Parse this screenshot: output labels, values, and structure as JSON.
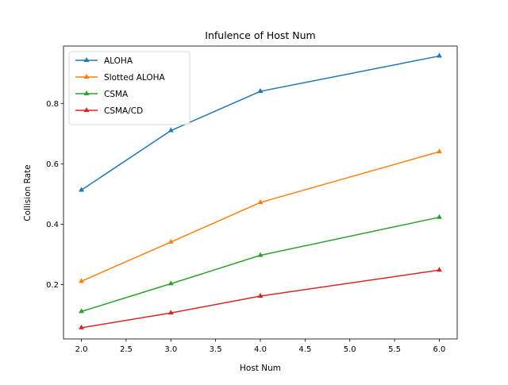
{
  "chart_data": {
    "type": "line",
    "title": "Infulence of Host Num",
    "xlabel": "Host Num",
    "ylabel": "Collision Rate",
    "x": [
      2,
      3,
      4,
      6
    ],
    "xlim": [
      1.8,
      6.2
    ],
    "ylim": [
      0.02,
      0.99
    ],
    "xticks": [
      "2.0",
      "2.5",
      "3.0",
      "3.5",
      "4.0",
      "4.5",
      "5.0",
      "5.5",
      "6.0"
    ],
    "yticks": [
      "0.2",
      "0.4",
      "0.6",
      "0.8"
    ],
    "marker": "triangle-up",
    "grid": false,
    "legend_position": "upper-left",
    "series": [
      {
        "name": "ALOHA",
        "color": "#1f77b4",
        "values": [
          0.513,
          0.71,
          0.84,
          0.957
        ]
      },
      {
        "name": "Slotted ALOHA",
        "color": "#ff7f0e",
        "values": [
          0.211,
          0.341,
          0.472,
          0.64
        ]
      },
      {
        "name": "CSMA",
        "color": "#2ca02c",
        "values": [
          0.111,
          0.203,
          0.297,
          0.423
        ]
      },
      {
        "name": "CSMA/CD",
        "color": "#d62728",
        "values": [
          0.057,
          0.106,
          0.162,
          0.248
        ]
      }
    ]
  }
}
